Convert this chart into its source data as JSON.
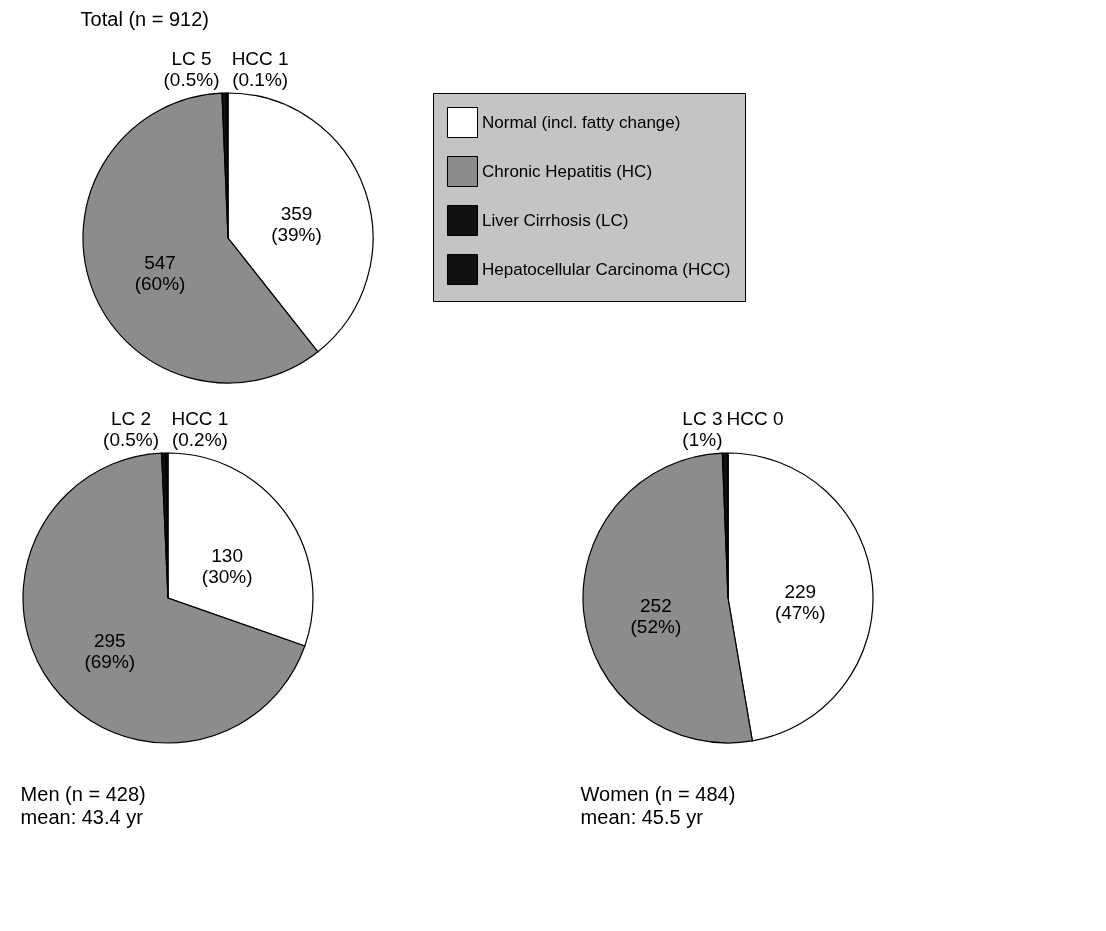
{
  "chart_data": [
    {
      "type": "pie",
      "title": "Total (n = 912)",
      "categories": [
        "Normal (incl. fatty change)",
        "Chronic Hepatitis (HC)",
        "Liver Cirrhosis (LC)",
        "Hepatocellular Carcinoma (HCC)"
      ],
      "values": [
        359,
        547,
        5,
        1
      ],
      "colors": [
        "#ffffff",
        "#8c8c8c",
        "#111111",
        "#111111"
      ],
      "value_labels": [
        "359\n(39%)",
        "547\n(60%)",
        "LC 5\n(0.5%)",
        "HCC 1\n(0.1%)"
      ],
      "legend": "right"
    },
    {
      "type": "pie",
      "title": "Men (n = 428)",
      "subtitle": "mean: 43.4 yr",
      "categories": [
        null,
        null,
        null,
        null
      ],
      "values": [
        130,
        295,
        2,
        1
      ],
      "colors": [
        "#ffffff",
        "#8c8c8c",
        "#111111",
        "#111111"
      ],
      "value_labels": [
        "130\n(30%)",
        "295\n(69%)",
        "LC 2\n(0.5%)",
        "HCC 1\n(0.2%)"
      ]
    },
    {
      "type": "pie",
      "title": "Women (n = 484)",
      "subtitle": "mean: 45.5 yr",
      "categories": [
        null,
        null,
        null,
        null
      ],
      "values": [
        229,
        252,
        3,
        0
      ],
      "colors": [
        "#ffffff",
        "#8c8c8c",
        "#111111",
        "#111111"
      ],
      "value_labels": [
        "229\n(47%)",
        "252\n(52%)",
        "LC 3\n(1%)",
        "HCC 0"
      ]
    }
  ]
}
